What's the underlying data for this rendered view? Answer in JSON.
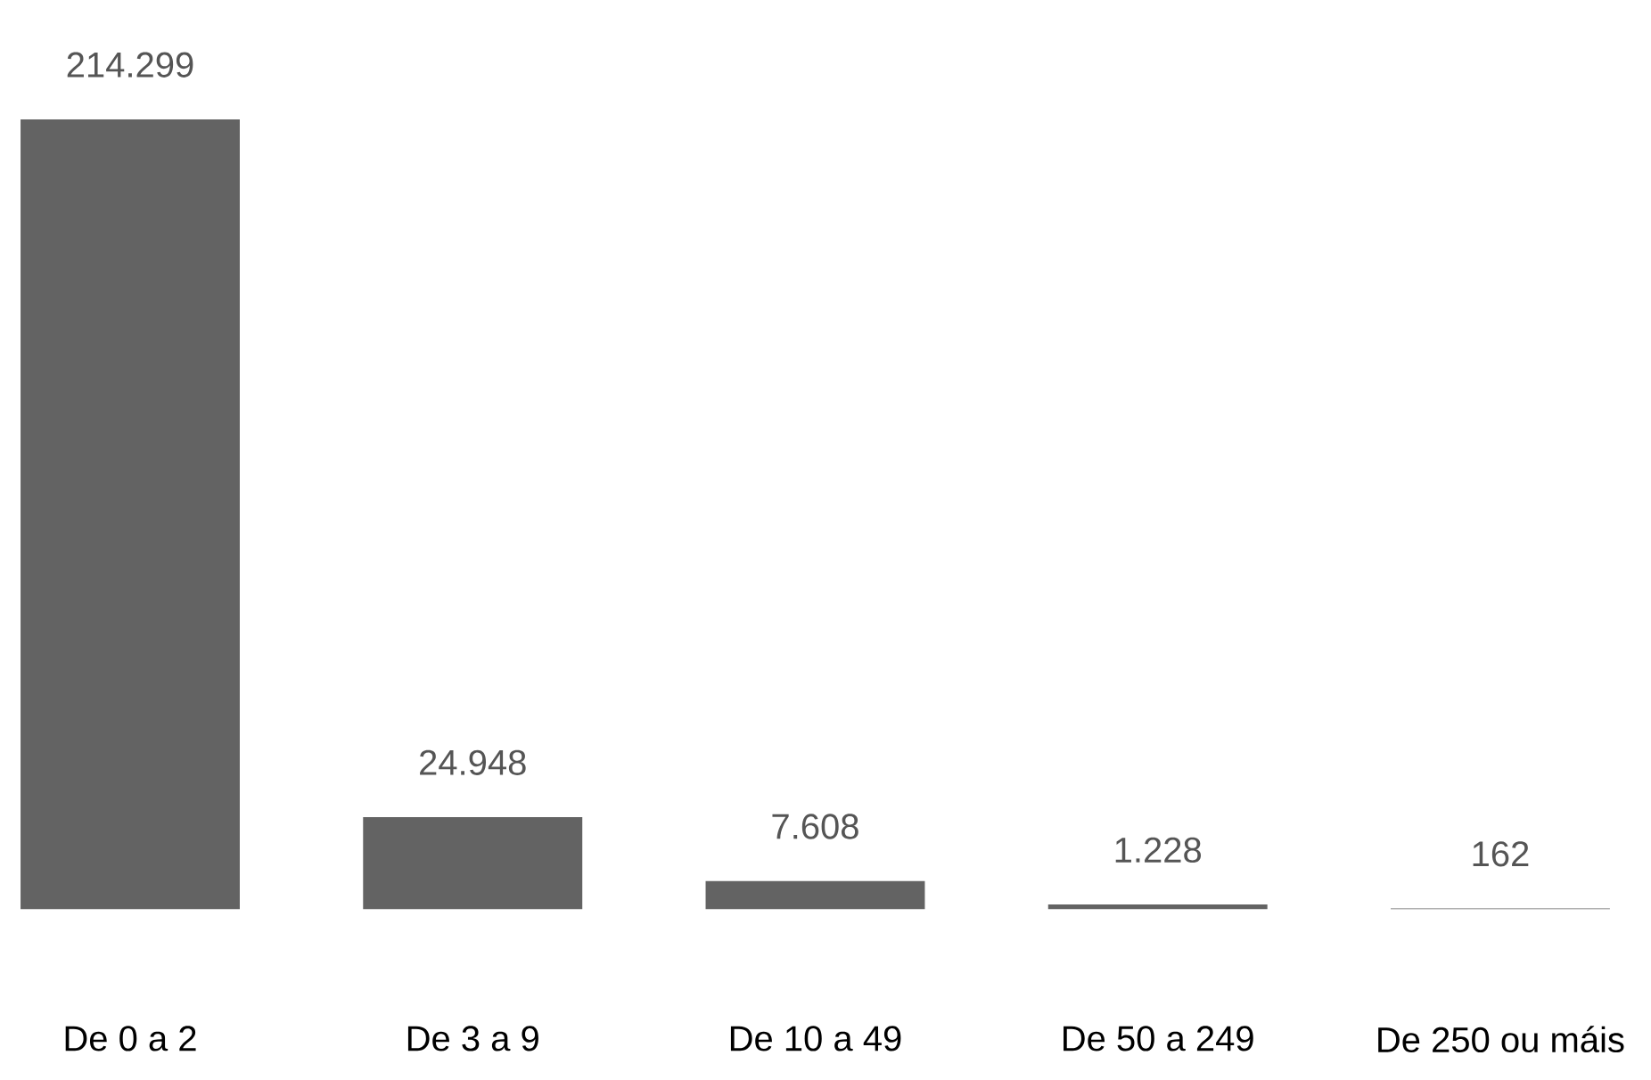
{
  "chart_data": {
    "type": "bar",
    "categories": [
      "De 0 a 2",
      "De 3 a 9",
      "De 10 a 49",
      "De 50 a 249",
      "De 250 ou máis"
    ],
    "values": [
      214299,
      24948,
      7608,
      1228,
      162
    ],
    "value_labels": [
      "214.299",
      "24.948",
      "7.608",
      "1.228",
      "162"
    ],
    "color": "#636363"
  }
}
